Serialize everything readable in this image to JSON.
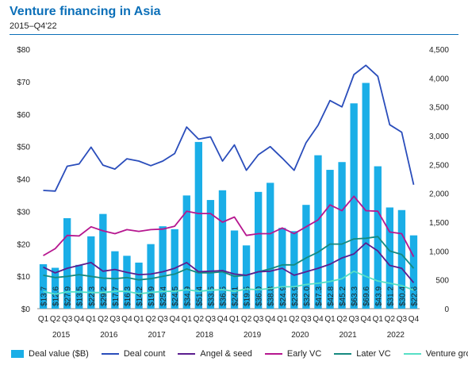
{
  "header": {
    "title": "Venture financing in Asia",
    "subtitle": "2015–Q4'22"
  },
  "colors": {
    "deal_value": "#1aaee7",
    "deal_count": "#2a4dbb",
    "angel_seed": "#5b1e8f",
    "early_vc": "#b6168f",
    "later_vc": "#168a80",
    "venture_growth": "#57dfc6",
    "rule": "#0b6fb8"
  },
  "legend": [
    "Deal value ($B)",
    "Deal count",
    "Angel & seed",
    "Early VC",
    "Later VC",
    "Venture growth"
  ],
  "chart_data": {
    "type": "bar",
    "title": "Venture financing in Asia",
    "subtitle": "2015–Q4'22",
    "quarters": [
      "Q1",
      "Q2",
      "Q3",
      "Q4",
      "Q1",
      "Q2",
      "Q3",
      "Q4",
      "Q1",
      "Q2",
      "Q3",
      "Q4",
      "Q1",
      "Q2",
      "Q3",
      "Q4",
      "Q1",
      "Q2",
      "Q3",
      "Q4",
      "Q1",
      "Q2",
      "Q3",
      "Q4",
      "Q1",
      "Q2",
      "Q3",
      "Q4",
      "Q1",
      "Q2",
      "Q3",
      "Q4"
    ],
    "years": [
      "2015",
      "2016",
      "2017",
      "2018",
      "2019",
      "2020",
      "2021",
      "2022"
    ],
    "left_axis": {
      "ticks": [
        "$0",
        "$10",
        "$20",
        "$30",
        "$40",
        "$50",
        "$60",
        "$70",
        "$80"
      ],
      "range": [
        0,
        80
      ]
    },
    "right_axis": {
      "ticks": [
        "0",
        "500",
        "1,000",
        "1,500",
        "2,000",
        "2,500",
        "3,000",
        "3,500",
        "4,000",
        "4,500"
      ],
      "range": [
        0,
        4500
      ]
    },
    "series": [
      {
        "name": "Deal value ($B)",
        "type": "bar",
        "axis": "left",
        "values": [
          13.7,
          12.6,
          27.9,
          13.5,
          22.3,
          29.2,
          17.7,
          16.3,
          14.2,
          19.9,
          25.4,
          24.5,
          34.9,
          51.4,
          33.5,
          36.5,
          24.1,
          19.5,
          36.0,
          38.8,
          24.9,
          23.9,
          32.0,
          47.3,
          42.8,
          45.2,
          63.3,
          69.6,
          43.9,
          31.2,
          30.4,
          22.6
        ],
        "labels": [
          "$13.7",
          "$12.6",
          "$27.9",
          "$13.5",
          "$22.3",
          "$29.2",
          "$17.7",
          "$16.3",
          "$14.2",
          "$19.9",
          "$25.4",
          "$24.5",
          "$34.9",
          "$51.4",
          "$33.5",
          "$36.5",
          "$24.1",
          "$19.5",
          "$36.0",
          "$38.8",
          "$24.9",
          "$23.9",
          "$32.0",
          "$47.3",
          "$42.8",
          "$45.2",
          "$63.3",
          "$69.6",
          "$43.9",
          "$31.2",
          "$30.4",
          "$22.6"
        ]
      },
      {
        "name": "Deal count",
        "type": "line",
        "axis": "right",
        "values": [
          2050,
          2040,
          2470,
          2510,
          2800,
          2490,
          2420,
          2600,
          2560,
          2480,
          2560,
          2690,
          3150,
          2940,
          2980,
          2560,
          2840,
          2400,
          2670,
          2810,
          2610,
          2400,
          2880,
          3180,
          3610,
          3500,
          4060,
          4220,
          4030,
          3190,
          3060,
          2150
        ]
      },
      {
        "name": "Angel & seed",
        "type": "line",
        "axis": "right",
        "values": [
          720,
          620,
          700,
          750,
          800,
          650,
          680,
          630,
          590,
          600,
          640,
          700,
          800,
          640,
          650,
          660,
          600,
          580,
          640,
          650,
          700,
          580,
          640,
          700,
          770,
          880,
          950,
          1140,
          1000,
          750,
          700,
          450
        ]
      },
      {
        "name": "Early VC",
        "type": "line",
        "axis": "right",
        "values": [
          920,
          1040,
          1270,
          1260,
          1420,
          1350,
          1300,
          1370,
          1340,
          1370,
          1380,
          1430,
          1690,
          1650,
          1650,
          1500,
          1590,
          1270,
          1300,
          1300,
          1400,
          1300,
          1420,
          1540,
          1800,
          1700,
          1950,
          1700,
          1690,
          1330,
          1300,
          900
        ]
      },
      {
        "name": "Later VC",
        "type": "line",
        "axis": "right",
        "values": [
          580,
          540,
          560,
          590,
          560,
          530,
          520,
          540,
          500,
          520,
          560,
          600,
          690,
          620,
          620,
          640,
          560,
          580,
          640,
          690,
          760,
          760,
          880,
          980,
          1120,
          1120,
          1210,
          1220,
          1250,
          1000,
          940,
          700
        ]
      },
      {
        "name": "Venture growth",
        "type": "line",
        "axis": "right",
        "values": [
          300,
          250,
          290,
          290,
          280,
          280,
          300,
          300,
          260,
          280,
          300,
          300,
          330,
          300,
          320,
          330,
          300,
          340,
          330,
          350,
          380,
          380,
          420,
          440,
          470,
          520,
          650,
          560,
          480,
          440,
          400,
          320
        ]
      }
    ]
  }
}
